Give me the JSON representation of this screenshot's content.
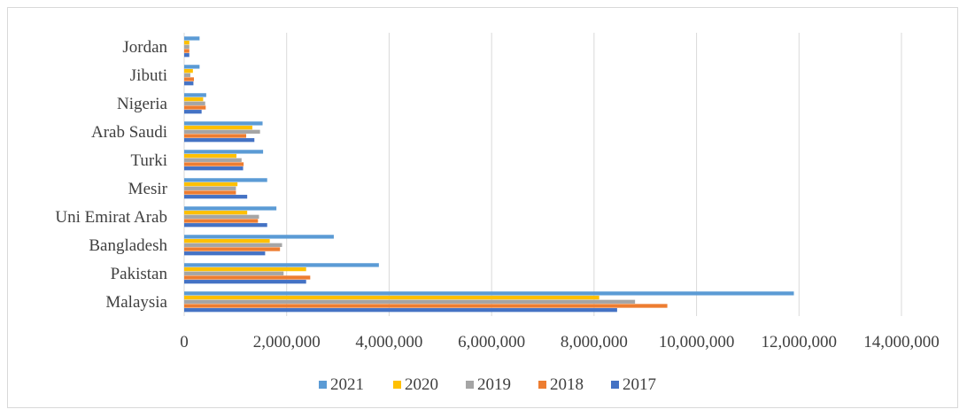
{
  "chart_data": {
    "type": "bar",
    "orientation": "horizontal",
    "categories": [
      "Malaysia",
      "Pakistan",
      "Bangladesh",
      "Uni Emirat Arab",
      "Mesir",
      "Turki",
      "Arab Saudi",
      "Nigeria",
      "Jibuti",
      "Jordan"
    ],
    "series": [
      {
        "name": "2021",
        "color": "#5b9bd5",
        "values": [
          11900000,
          3800000,
          2920000,
          1800000,
          1620000,
          1540000,
          1530000,
          430000,
          300000,
          300000
        ]
      },
      {
        "name": "2020",
        "color": "#ffc000",
        "values": [
          8100000,
          2380000,
          1670000,
          1230000,
          1040000,
          1020000,
          1330000,
          370000,
          170000,
          100000
        ]
      },
      {
        "name": "2019",
        "color": "#a5a5a5",
        "values": [
          8800000,
          1940000,
          1910000,
          1460000,
          1010000,
          1120000,
          1480000,
          410000,
          120000,
          100000
        ]
      },
      {
        "name": "2018",
        "color": "#ed7d31",
        "values": [
          9430000,
          2460000,
          1870000,
          1440000,
          1010000,
          1160000,
          1210000,
          420000,
          190000,
          100000
        ]
      },
      {
        "name": "2017",
        "color": "#4472c4",
        "values": [
          8450000,
          2380000,
          1580000,
          1620000,
          1230000,
          1150000,
          1370000,
          340000,
          180000,
          100000
        ]
      }
    ],
    "xlim": [
      0,
      14000000
    ],
    "xticks": [
      "0",
      "2,000,000",
      "4,000,000",
      "6,000,000",
      "8,000,000",
      "10,000,000",
      "12,000,000",
      "14,000,000"
    ],
    "grid": true,
    "legend": "bottom"
  }
}
